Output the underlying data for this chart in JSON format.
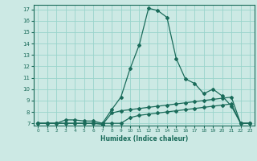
{
  "title": "",
  "xlabel": "Humidex (Indice chaleur)",
  "bg_color": "#cce9e4",
  "line_color": "#1a6b5a",
  "grid_color": "#99d4cc",
  "xlim": [
    -0.5,
    23.5
  ],
  "ylim": [
    6.8,
    17.4
  ],
  "xticks": [
    0,
    1,
    2,
    3,
    4,
    5,
    6,
    7,
    8,
    9,
    10,
    11,
    12,
    13,
    14,
    15,
    16,
    17,
    18,
    19,
    20,
    21,
    22,
    23
  ],
  "yticks": [
    7,
    8,
    9,
    10,
    11,
    12,
    13,
    14,
    15,
    16,
    17
  ],
  "line1_x": [
    0,
    1,
    2,
    3,
    4,
    5,
    6,
    7,
    8,
    9,
    10,
    11,
    12,
    13,
    14,
    15,
    16,
    17,
    18,
    19,
    20,
    21,
    22,
    23
  ],
  "line1_y": [
    7,
    7,
    7,
    7.3,
    7.3,
    7.2,
    7.2,
    7.0,
    8.2,
    9.3,
    11.8,
    13.9,
    17.1,
    16.9,
    16.3,
    12.7,
    10.9,
    10.5,
    9.6,
    10.0,
    9.4,
    8.5,
    7.0,
    7.0
  ],
  "line2_x": [
    0,
    1,
    2,
    3,
    4,
    5,
    6,
    7,
    8,
    9,
    10,
    11,
    12,
    13,
    14,
    15,
    16,
    17,
    18,
    19,
    20,
    21,
    22,
    23
  ],
  "line2_y": [
    7,
    7,
    7,
    7,
    7,
    7,
    7,
    6.9,
    7.9,
    8.1,
    8.2,
    8.3,
    8.4,
    8.5,
    8.6,
    8.7,
    8.8,
    8.9,
    9.0,
    9.1,
    9.2,
    9.3,
    7.0,
    7.0
  ],
  "line3_x": [
    0,
    1,
    2,
    3,
    4,
    5,
    6,
    7,
    8,
    9,
    10,
    11,
    12,
    13,
    14,
    15,
    16,
    17,
    18,
    19,
    20,
    21,
    22,
    23
  ],
  "line3_y": [
    7,
    7,
    7,
    7,
    7,
    7,
    7,
    7,
    7,
    7,
    7.5,
    7.7,
    7.8,
    7.9,
    8.0,
    8.1,
    8.2,
    8.3,
    8.4,
    8.5,
    8.6,
    8.7,
    7.0,
    7.0
  ]
}
